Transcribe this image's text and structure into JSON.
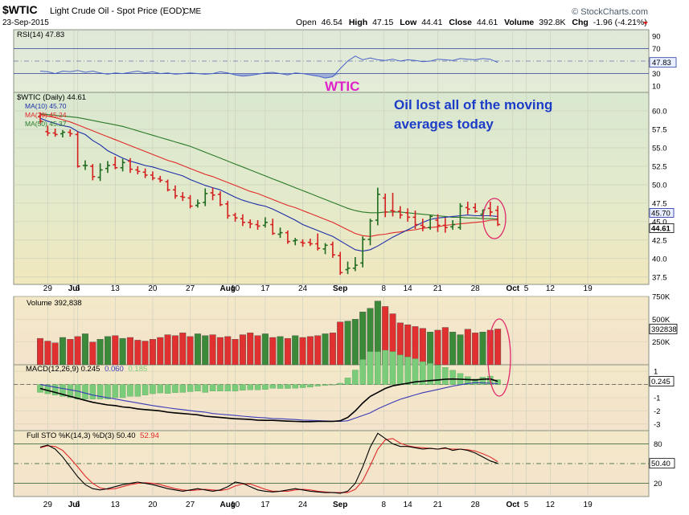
{
  "header": {
    "symbol": "$WTIC",
    "name": "Light Crude Oil - Spot Price (EOD)",
    "exchange": "CME",
    "date": "23-Sep-2015",
    "brand": "© StockCharts.com",
    "open_label": "Open",
    "open": "46.54",
    "high_label": "High",
    "high": "47.15",
    "low_label": "Low",
    "low": "44.41",
    "close_label": "Close",
    "close": "44.61",
    "volume_label": "Volume",
    "volume": "392.8K",
    "chg_label": "Chg",
    "chg": "-1.96 (-4.21%)"
  },
  "annotations": {
    "wtic": "WTIC",
    "note_line1": "Oil lost all of the moving",
    "note_line2": "averages today"
  },
  "colors": {
    "price_up": "#1f6b1f",
    "price_down": "#d42020",
    "ma10": "#1c2ea8",
    "ma20": "#e02a2a",
    "ma50": "#2a7a2a",
    "rsi": "#4a62c8",
    "macd": "#000000",
    "signal": "#3a3ab8",
    "hist": "#7acb7a",
    "k": "#000000",
    "d": "#e02a2a",
    "annotation_pink": "#e020c8",
    "annotation_blue": "#1c3cc8"
  },
  "chart_data": [
    {
      "type": "line",
      "title": "RSI(14) 47.83",
      "series": [
        {
          "name": "RSI(14)",
          "values": [
            34,
            33,
            30,
            34,
            33,
            35,
            32,
            34,
            31,
            29,
            31,
            30,
            32,
            34,
            31,
            33,
            30,
            31,
            29,
            30,
            31,
            30,
            29,
            30,
            33,
            31,
            28,
            26,
            27,
            29,
            31,
            32,
            30,
            28,
            31,
            30,
            28,
            26,
            23,
            25,
            38,
            50,
            58,
            52,
            55,
            52,
            51,
            53,
            50,
            52,
            51,
            49,
            50,
            53,
            52,
            51,
            54,
            53,
            52,
            54,
            53,
            47.83
          ]
        }
      ],
      "ylim": [
        0,
        100
      ],
      "yticks": [
        90,
        70,
        50,
        30,
        10
      ],
      "last_label": "47.83"
    },
    {
      "type": "candlestick",
      "title": "$WTIC (Daily) 44.61",
      "legend": [
        "MA(10) 45.70",
        "MA(20) 45.24",
        "MA(50) 45.37"
      ],
      "x": [
        "2015-06-26",
        "2015-06-29",
        "2015-06-30",
        "2015-07-01",
        "2015-07-02",
        "2015-07-06",
        "2015-07-07",
        "2015-07-08",
        "2015-07-09",
        "2015-07-10",
        "2015-07-13",
        "2015-07-14",
        "2015-07-15",
        "2015-07-16",
        "2015-07-17",
        "2015-07-20",
        "2015-07-21",
        "2015-07-22",
        "2015-07-23",
        "2015-07-24",
        "2015-07-27",
        "2015-07-28",
        "2015-07-29",
        "2015-07-30",
        "2015-07-31",
        "2015-08-03",
        "2015-08-04",
        "2015-08-05",
        "2015-08-06",
        "2015-08-07",
        "2015-08-10",
        "2015-08-11",
        "2015-08-12",
        "2015-08-13",
        "2015-08-14",
        "2015-08-17",
        "2015-08-18",
        "2015-08-19",
        "2015-08-20",
        "2015-08-21",
        "2015-08-24",
        "2015-08-25",
        "2015-08-26",
        "2015-08-27",
        "2015-08-28",
        "2015-08-31",
        "2015-09-01",
        "2015-09-02",
        "2015-09-03",
        "2015-09-04",
        "2015-09-08",
        "2015-09-09",
        "2015-09-10",
        "2015-09-11",
        "2015-09-14",
        "2015-09-15",
        "2015-09-16",
        "2015-09-17",
        "2015-09-18",
        "2015-09-21",
        "2015-09-22",
        "2015-09-23"
      ],
      "open": [
        59.2,
        57.2,
        57.0,
        56.9,
        57.1,
        56.8,
        52.6,
        52.5,
        51.0,
        52.2,
        52.7,
        52.3,
        53.2,
        52.0,
        51.7,
        51.3,
        50.8,
        50.4,
        49.3,
        48.4,
        48.2,
        47.2,
        47.6,
        48.9,
        48.7,
        47.4,
        45.9,
        45.4,
        44.9,
        44.6,
        44.5,
        44.6,
        43.3,
        43.5,
        42.4,
        42.2,
        42.2,
        42.0,
        41.3,
        41.9,
        40.4,
        38.5,
        38.7,
        39.4,
        42.6,
        45.2,
        48.2,
        46.5,
        46.4,
        46.2,
        45.6,
        44.5,
        44.2,
        45.2,
        44.5,
        44.3,
        44.2,
        46.9,
        46.9,
        46.0,
        46.8,
        46.54
      ],
      "high": [
        59.8,
        58.0,
        57.6,
        57.4,
        57.5,
        57.2,
        53.3,
        52.8,
        52.9,
        53.2,
        53.8,
        53.5,
        53.6,
        52.5,
        52.2,
        51.8,
        51.2,
        50.7,
        49.9,
        49.0,
        48.6,
        48.0,
        49.5,
        49.6,
        49.1,
        47.8,
        46.2,
        46.0,
        45.3,
        45.2,
        45.6,
        45.4,
        44.2,
        43.8,
        42.8,
        42.6,
        42.7,
        43.4,
        42.1,
        42.3,
        40.9,
        39.6,
        40.2,
        43.0,
        45.4,
        49.6,
        48.8,
        48.9,
        47.1,
        46.8,
        46.5,
        45.4,
        45.9,
        46.0,
        45.5,
        45.2,
        47.5,
        47.7,
        47.5,
        46.6,
        47.7,
        47.15
      ],
      "low": [
        58.3,
        56.6,
        56.5,
        56.4,
        56.5,
        52.3,
        52.0,
        50.6,
        50.5,
        51.6,
        52.1,
        51.8,
        51.6,
        51.4,
        50.9,
        50.6,
        50.3,
        49.1,
        48.1,
        47.8,
        46.8,
        46.9,
        47.1,
        47.9,
        47.1,
        45.4,
        45.0,
        44.4,
        44.1,
        43.9,
        44.2,
        43.2,
        42.8,
        42.0,
        41.8,
        41.6,
        41.7,
        41.1,
        40.6,
        40.1,
        37.8,
        37.9,
        38.3,
        38.8,
        41.8,
        44.5,
        45.6,
        45.7,
        45.4,
        45.0,
        44.0,
        43.7,
        43.9,
        43.6,
        43.5,
        43.9,
        43.9,
        46.0,
        46.2,
        45.5,
        45.7,
        44.41
      ],
      "close": [
        58.6,
        57.0,
        56.8,
        57.1,
        56.9,
        52.5,
        52.6,
        51.1,
        52.0,
        52.6,
        52.3,
        53.0,
        52.1,
        51.8,
        51.3,
        50.9,
        50.6,
        49.3,
        48.5,
        48.3,
        47.1,
        47.5,
        48.8,
        48.6,
        47.3,
        45.8,
        45.5,
        44.9,
        44.7,
        44.4,
        44.9,
        43.4,
        43.5,
        42.3,
        42.5,
        42.1,
        42.0,
        41.4,
        41.8,
        40.5,
        38.1,
        38.7,
        39.1,
        42.6,
        45.1,
        48.7,
        46.3,
        46.4,
        45.9,
        45.6,
        44.6,
        44.3,
        45.7,
        44.5,
        44.2,
        44.6,
        47.1,
        46.7,
        46.4,
        46.6,
        46.3,
        44.61
      ],
      "ma10": [
        59.0,
        58.6,
        58.3,
        58.0,
        57.8,
        57.2,
        56.8,
        56.0,
        55.4,
        54.6,
        54.1,
        53.6,
        53.2,
        52.9,
        52.6,
        52.4,
        52.1,
        51.8,
        51.5,
        51.2,
        50.7,
        50.3,
        49.9,
        49.6,
        49.3,
        48.8,
        48.3,
        47.9,
        47.6,
        47.3,
        47.1,
        46.7,
        46.2,
        45.7,
        45.2,
        44.6,
        44.2,
        43.8,
        43.4,
        43.0,
        42.4,
        41.8,
        41.2,
        41.0,
        41.2,
        41.7,
        42.3,
        42.9,
        43.4,
        43.9,
        44.4,
        44.9,
        45.3,
        45.5,
        45.6,
        45.7,
        45.8,
        45.9,
        45.8,
        45.8,
        45.8,
        45.7
      ],
      "ma20": [
        59.5,
        59.3,
        59.1,
        58.8,
        58.5,
        58.1,
        57.7,
        57.3,
        56.9,
        56.5,
        56.1,
        55.7,
        55.3,
        54.9,
        54.5,
        54.1,
        53.7,
        53.3,
        53.0,
        52.6,
        52.2,
        51.8,
        51.4,
        51.1,
        50.7,
        50.3,
        49.9,
        49.5,
        49.1,
        48.8,
        48.4,
        48.0,
        47.6,
        47.2,
        46.9,
        46.5,
        46.1,
        45.7,
        45.3,
        44.9,
        44.4,
        43.9,
        43.4,
        43.1,
        43.0,
        43.2,
        43.3,
        43.5,
        43.6,
        43.8,
        43.9,
        44.1,
        44.2,
        44.3,
        44.5,
        44.6,
        44.7,
        44.8,
        44.9,
        45.0,
        45.2,
        45.24
      ],
      "ma50": [
        59.6,
        59.5,
        59.4,
        59.3,
        59.2,
        59.1,
        58.9,
        58.7,
        58.5,
        58.3,
        58.1,
        57.9,
        57.6,
        57.3,
        57.0,
        56.7,
        56.4,
        56.1,
        55.8,
        55.5,
        55.2,
        54.8,
        54.4,
        54.0,
        53.6,
        53.2,
        52.8,
        52.4,
        52.0,
        51.6,
        51.2,
        50.8,
        50.4,
        50.0,
        49.6,
        49.2,
        48.8,
        48.4,
        48.0,
        47.6,
        47.2,
        46.8,
        46.5,
        46.3,
        46.2,
        46.2,
        46.3,
        46.3,
        46.3,
        46.2,
        46.1,
        46.0,
        45.9,
        45.8,
        45.7,
        45.6,
        45.6,
        45.5,
        45.5,
        45.4,
        45.4,
        45.37
      ],
      "ylim": [
        36.5,
        62.5
      ],
      "yticks": [
        "60.0",
        "57.5",
        "55.0",
        "52.5",
        "50.0",
        "47.5",
        "45.0",
        "42.5",
        "40.0",
        "37.5"
      ],
      "last_labels": [
        "45.70",
        "44.61"
      ],
      "xticks": [
        "29",
        "Jul",
        "6",
        "13",
        "20",
        "27",
        "Aug",
        "10",
        "17",
        "24",
        "Sep",
        "8",
        "14",
        "21",
        "28",
        "Oct",
        "5",
        "12",
        "19"
      ]
    },
    {
      "type": "bar",
      "title": "Volume 392,838",
      "values": [
        290,
        260,
        240,
        300,
        280,
        310,
        340,
        250,
        280,
        310,
        320,
        290,
        300,
        270,
        260,
        280,
        300,
        330,
        320,
        350,
        310,
        340,
        320,
        330,
        300,
        310,
        280,
        330,
        350,
        320,
        340,
        300,
        310,
        290,
        320,
        300,
        310,
        320,
        340,
        350,
        470,
        480,
        500,
        580,
        620,
        700,
        640,
        560,
        460,
        440,
        420,
        400,
        360,
        380,
        410,
        360,
        330,
        390,
        350,
        360,
        380,
        392.8
      ],
      "ylim": [
        0,
        750
      ],
      "yticks": [
        "750K",
        "500K",
        "250K"
      ],
      "last_label": "392838"
    },
    {
      "type": "line",
      "title": "MACD(12,26,9) 0.245, 0.060, 0.185",
      "legend": [
        "MACD(12,26,9) 0.245",
        "0.060",
        "0.185"
      ],
      "macd": [
        -0.3,
        -0.45,
        -0.6,
        -0.75,
        -0.9,
        -1.05,
        -1.2,
        -1.35,
        -1.45,
        -1.55,
        -1.6,
        -1.7,
        -1.75,
        -1.85,
        -1.9,
        -1.95,
        -2.0,
        -2.1,
        -2.15,
        -2.2,
        -2.25,
        -2.3,
        -2.4,
        -2.45,
        -2.5,
        -2.55,
        -2.6,
        -2.62,
        -2.65,
        -2.7,
        -2.72,
        -2.72,
        -2.75,
        -2.78,
        -2.8,
        -2.82,
        -2.82,
        -2.8,
        -2.8,
        -2.8,
        -2.75,
        -2.5,
        -2.0,
        -1.4,
        -0.9,
        -0.6,
        -0.3,
        -0.1,
        0.0,
        0.1,
        0.2,
        0.25,
        0.3,
        0.35,
        0.4,
        0.42,
        0.4,
        0.38,
        0.35,
        0.4,
        0.42,
        0.245
      ],
      "signal": [
        0.0,
        -0.1,
        -0.2,
        -0.3,
        -0.4,
        -0.5,
        -0.65,
        -0.8,
        -0.9,
        -1.0,
        -1.1,
        -1.2,
        -1.3,
        -1.4,
        -1.5,
        -1.6,
        -1.68,
        -1.76,
        -1.84,
        -1.9,
        -1.98,
        -2.05,
        -2.1,
        -2.2,
        -2.25,
        -2.3,
        -2.35,
        -2.4,
        -2.45,
        -2.5,
        -2.53,
        -2.58,
        -2.6,
        -2.63,
        -2.66,
        -2.7,
        -2.72,
        -2.74,
        -2.76,
        -2.78,
        -2.8,
        -2.75,
        -2.55,
        -2.35,
        -2.15,
        -1.85,
        -1.6,
        -1.35,
        -1.12,
        -0.95,
        -0.78,
        -0.62,
        -0.5,
        -0.38,
        -0.25,
        -0.12,
        -0.02,
        0.08,
        0.14,
        0.12,
        0.1,
        0.06
      ],
      "ylim": [
        -3.5,
        1.5
      ],
      "yticks": [
        "1",
        "0.245",
        "-1",
        "-2",
        "-3"
      ]
    },
    {
      "type": "line",
      "title": "Full STO %K(14,3) %D(3) 50.40, 52.94",
      "legend": [
        "Full STO %K(14,3) %D(3) 50.40",
        "52.94"
      ],
      "k": [
        75,
        78,
        72,
        60,
        45,
        30,
        18,
        12,
        10,
        12,
        15,
        18,
        20,
        22,
        20,
        18,
        15,
        12,
        10,
        8,
        10,
        12,
        10,
        8,
        10,
        15,
        22,
        20,
        15,
        10,
        8,
        7,
        8,
        10,
        12,
        10,
        8,
        7,
        6,
        6,
        5,
        8,
        20,
        45,
        75,
        96,
        88,
        80,
        76,
        76,
        74,
        72,
        73,
        72,
        74,
        70,
        72,
        70,
        66,
        60,
        54,
        50.4
      ],
      "d": [
        74,
        77,
        76,
        70,
        58,
        45,
        31,
        20,
        13,
        11,
        12,
        15,
        18,
        20,
        21,
        20,
        18,
        15,
        12,
        10,
        9,
        10,
        11,
        10,
        9,
        11,
        16,
        19,
        19,
        15,
        11,
        8,
        8,
        8,
        10,
        11,
        10,
        8,
        7,
        6,
        6,
        6,
        11,
        24,
        47,
        72,
        86,
        88,
        81,
        77,
        75,
        74,
        73,
        72,
        73,
        72,
        72,
        71,
        69,
        65,
        60,
        52.94
      ],
      "ylim": [
        0,
        100
      ],
      "yticks": [
        "80",
        "50.40",
        "20"
      ]
    }
  ]
}
